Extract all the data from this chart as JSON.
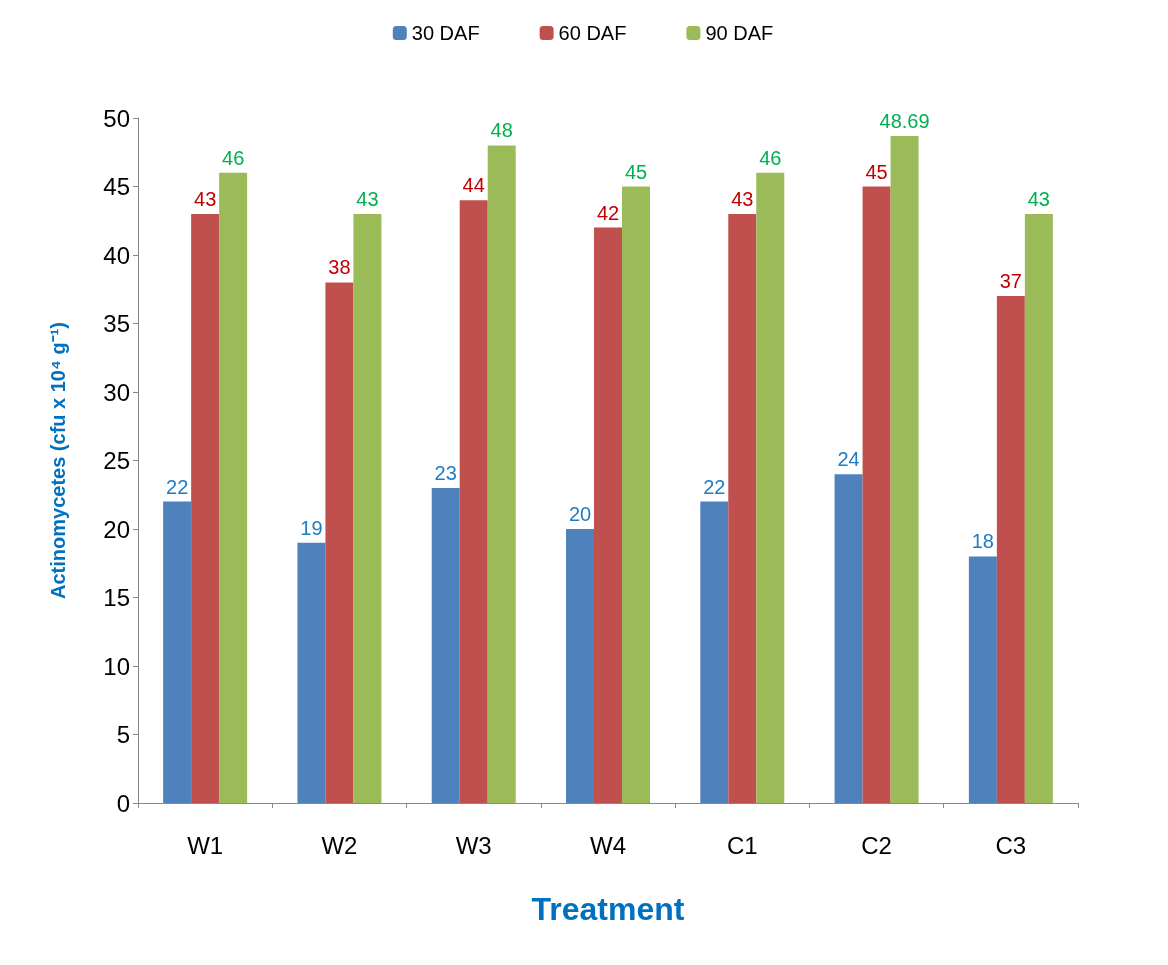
{
  "chart_data": {
    "type": "bar",
    "xlabel": "Treatment",
    "ylabel": "Actinomycetes (cfu x 10⁴ g⁻¹)",
    "categories": [
      "W1",
      "W2",
      "W3",
      "W4",
      "C1",
      "C2",
      "C3"
    ],
    "series": [
      {
        "name": "30 DAF",
        "color": "#4f81bd",
        "values": [
          22,
          19,
          23,
          20,
          22,
          24,
          18
        ]
      },
      {
        "name": "60 DAF",
        "color": "#c0504d",
        "values": [
          43,
          38,
          44,
          42,
          43,
          45,
          37
        ]
      },
      {
        "name": "90 DAF",
        "color": "#9bbb59",
        "values": [
          46,
          43,
          48,
          45,
          46,
          48.69,
          43
        ]
      }
    ],
    "ylim": [
      0,
      50
    ],
    "yticks": [
      0,
      5,
      10,
      15,
      20,
      25,
      30,
      35,
      40,
      45,
      50
    ],
    "grid": false,
    "legend": "top",
    "data_labels": true
  }
}
